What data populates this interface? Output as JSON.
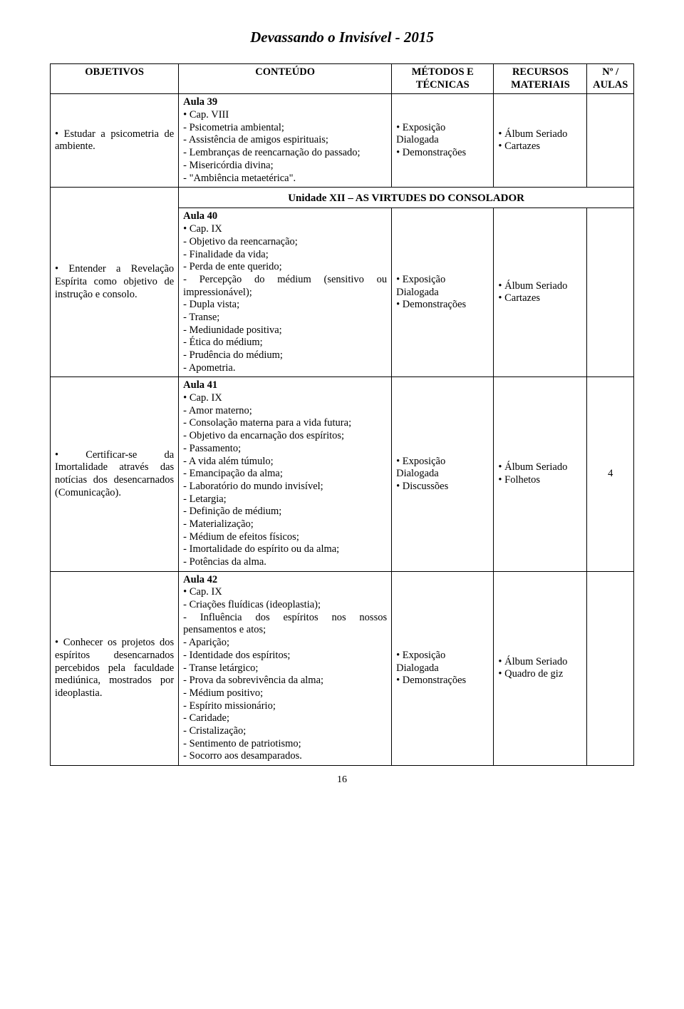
{
  "docTitle": "Devassando o Invisível - 2015",
  "headers": {
    "c1": "OBJETIVOS",
    "c2": "CONTEÚDO",
    "c3": "MÉTODOS E TÉCNICAS",
    "c4": "RECURSOS MATERIAIS",
    "c5": "Nº / AULAS"
  },
  "row1": {
    "objetivo": "• Estudar a psicometria de ambiente.",
    "aula": "Aula 39",
    "cap": "• Cap. VIII",
    "itens": "- Psicometria ambiental;\n- Assistência de amigos espirituais;\n- Lembranças de reencarnação do passado;\n- Misericórdia divina;\n- \"Ambiência metaetérica\".",
    "met": "• Exposição Dialogada\n• Demonstrações",
    "rec": "• Álbum Seriado\n• Cartazes"
  },
  "unit": "Unidade XII – AS VIRTUDES DO CONSOLADOR",
  "row2": {
    "objetivo": "• Entender a Revelação Espírita como objetivo de instrução e consolo.",
    "aula": "Aula 40",
    "cap": "• Cap. IX",
    "itens": "- Objetivo da reencarnação;\n- Finalidade da vida;\n- Perda de ente querido;\n- Percepção do médium (sensitivo ou impressionável);\n- Dupla vista;\n- Transe;\n- Mediunidade positiva;\n- Ética do médium;\n- Prudência do médium;\n- Apometria.",
    "met": "• Exposição Dialogada\n• Demonstrações",
    "rec": "• Álbum Seriado\n• Cartazes"
  },
  "row3": {
    "objetivo": "• Certificar-se da Imortalidade através das notícias dos desencarnados (Comunicação).",
    "aula": "Aula 41",
    "cap": "• Cap. IX",
    "itens": "- Amor materno;\n- Consolação materna para a vida futura;\n- Objetivo da encarnação dos espíritos;\n- Passamento;\n- A vida além túmulo;\n- Emancipação da alma;\n- Laboratório do mundo invisível;\n- Letargia;\n- Definição de médium;\n- Materialização;\n- Médium de efeitos físicos;\n- Imortalidade do espírito ou da alma;\n- Potências da alma.",
    "met": "• Exposição Dialogada\n• Discussões",
    "rec": "• Álbum Seriado\n• Folhetos",
    "aulas": "4"
  },
  "row4": {
    "objetivo": "• Conhecer os projetos dos espíritos desencarnados percebidos pela faculdade mediúnica, mostrados por ideoplastia.",
    "aula": "Aula 42",
    "cap": "• Cap. IX",
    "itens": "- Criações fluídicas (ideoplastia);\n- Influência dos espíritos nos nossos pensamentos e atos;\n- Aparição;\n- Identidade dos espíritos;\n- Transe letárgico;\n- Prova da sobrevivência da alma;\n- Médium positivo;\n- Espírito missionário;\n- Caridade;\n- Cristalização;\n- Sentimento de patriotismo;\n- Socorro aos desamparados.",
    "met": "• Exposição Dialogada\n• Demonstrações",
    "rec": "• Álbum Seriado\n• Quadro de giz"
  },
  "pageNumber": "16"
}
